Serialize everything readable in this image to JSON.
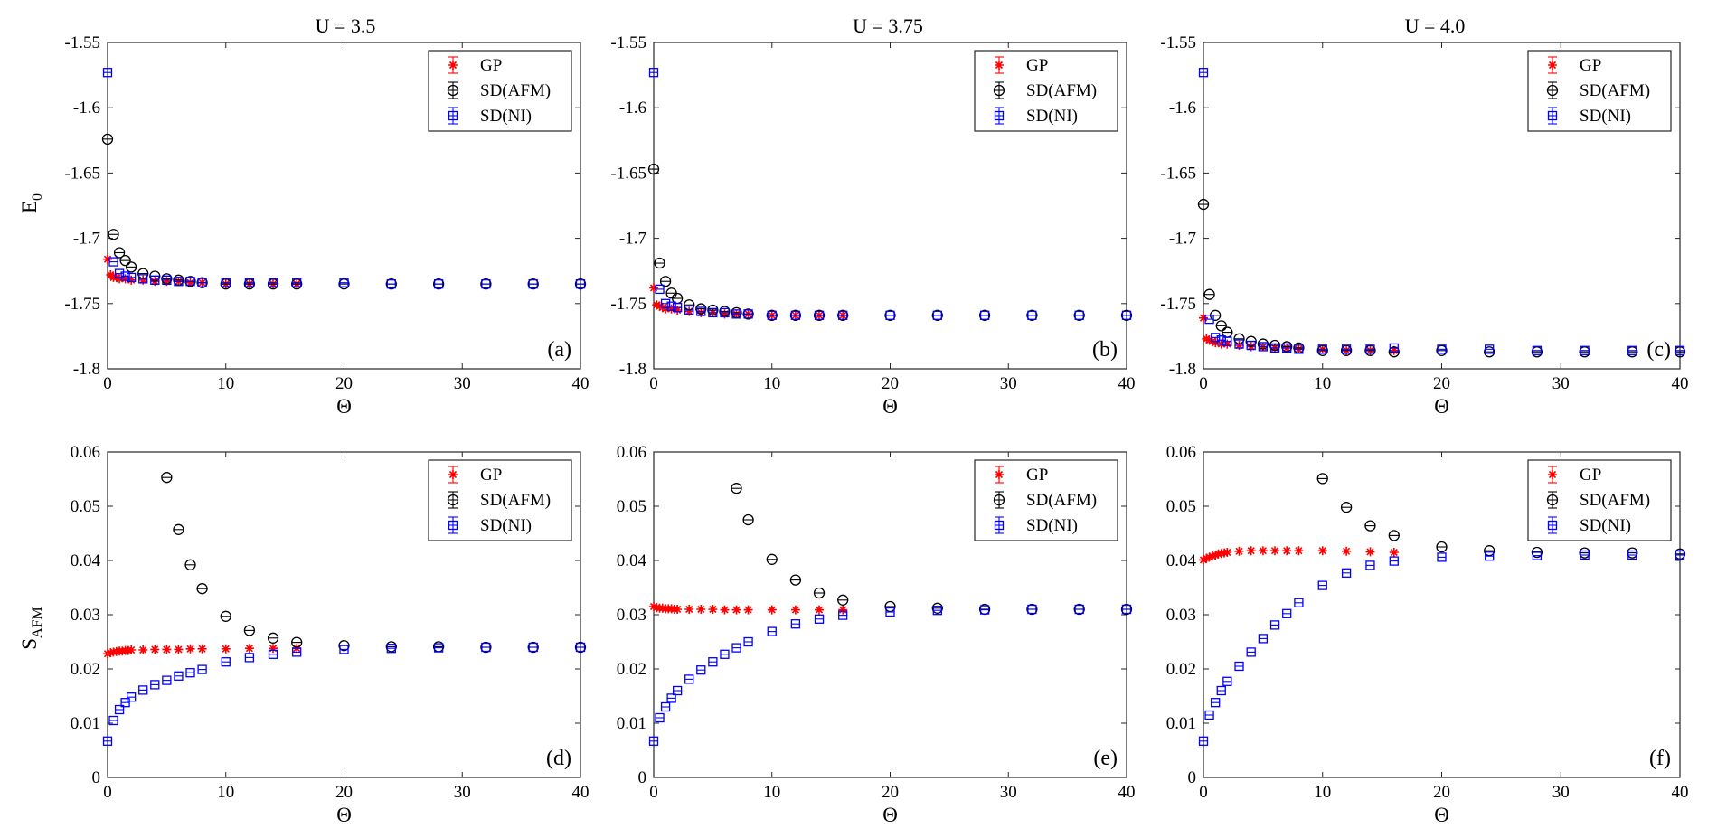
{
  "figure": {
    "column_titles": [
      "U = 3.5",
      "U = 3.75",
      "U = 4.0"
    ],
    "row_ylabels": [
      {
        "main": "E",
        "sub": "0"
      },
      {
        "main": "S",
        "sub": "AFM"
      }
    ],
    "legend_labels": [
      "GP",
      "SD(AFM)",
      "SD(NI)"
    ],
    "colors": {
      "GP": "#ff0000",
      "SD(AFM)": "#000000",
      "SD(NI)": "#0000ff"
    }
  },
  "chart_data": [
    {
      "type": "scatter",
      "panel_label": "(a)",
      "title": "U = 3.5",
      "xlabel": "Θ",
      "ylabel": "E0",
      "xlim": [
        0,
        40
      ],
      "ylim": [
        -1.8,
        -1.55
      ],
      "xticks": [
        0,
        10,
        20,
        30,
        40
      ],
      "xtick_labels": [
        "0",
        "10",
        "20",
        "30",
        "40"
      ],
      "yticks": [
        -1.8,
        -1.75,
        -1.7,
        -1.65,
        -1.6,
        -1.55
      ],
      "ytick_labels": [
        "-1.8",
        "-1.75",
        "-1.7",
        "-1.65",
        "-1.6",
        "-1.55"
      ],
      "legend": [
        "GP",
        "SD(AFM)",
        "SD(NI)"
      ],
      "legend_position": "top-right",
      "series": [
        {
          "name": "GP",
          "marker": "star",
          "x": [
            0,
            0.25,
            0.5,
            0.75,
            1,
            1.5,
            2,
            3,
            4,
            5,
            6,
            7,
            8,
            10,
            12,
            14,
            16
          ],
          "y": [
            -1.716,
            -1.728,
            -1.73,
            -1.73,
            -1.731,
            -1.731,
            -1.732,
            -1.732,
            -1.733,
            -1.733,
            -1.733,
            -1.734,
            -1.734,
            -1.735,
            -1.735,
            -1.735,
            -1.735
          ]
        },
        {
          "name": "SD(AFM)",
          "marker": "circle",
          "x": [
            0,
            0.5,
            1,
            1.5,
            2,
            3,
            4,
            5,
            6,
            7,
            8,
            10,
            12,
            14,
            16,
            20,
            24,
            28,
            32,
            36,
            40
          ],
          "y": [
            -1.624,
            -1.697,
            -1.711,
            -1.717,
            -1.722,
            -1.727,
            -1.729,
            -1.731,
            -1.732,
            -1.733,
            -1.734,
            -1.735,
            -1.735,
            -1.735,
            -1.735,
            -1.735,
            -1.735,
            -1.735,
            -1.735,
            -1.735,
            -1.735
          ]
        },
        {
          "name": "SD(NI)",
          "marker": "square",
          "x": [
            0,
            0.5,
            1,
            1.5,
            2,
            3,
            4,
            5,
            6,
            7,
            8,
            10,
            12,
            14,
            16,
            20,
            24,
            28,
            32,
            36,
            40
          ],
          "y": [
            -1.573,
            -1.718,
            -1.727,
            -1.729,
            -1.73,
            -1.731,
            -1.732,
            -1.732,
            -1.733,
            -1.733,
            -1.734,
            -1.734,
            -1.734,
            -1.734,
            -1.734,
            -1.734,
            -1.735,
            -1.735,
            -1.735,
            -1.735,
            -1.735
          ]
        }
      ]
    },
    {
      "type": "scatter",
      "panel_label": "(b)",
      "title": "U = 3.75",
      "xlabel": "Θ",
      "ylabel": "E0",
      "xlim": [
        0,
        40
      ],
      "ylim": [
        -1.8,
        -1.55
      ],
      "xticks": [
        0,
        10,
        20,
        30,
        40
      ],
      "xtick_labels": [
        "0",
        "10",
        "20",
        "30",
        "40"
      ],
      "yticks": [
        -1.8,
        -1.75,
        -1.7,
        -1.65,
        -1.6,
        -1.55
      ],
      "ytick_labels": [
        "-1.8",
        "-1.75",
        "-1.7",
        "-1.65",
        "-1.6",
        "-1.55"
      ],
      "legend": [
        "GP",
        "SD(AFM)",
        "SD(NI)"
      ],
      "legend_position": "top-right",
      "series": [
        {
          "name": "GP",
          "marker": "star",
          "x": [
            0,
            0.25,
            0.5,
            0.75,
            1,
            1.5,
            2,
            3,
            4,
            5,
            6,
            7,
            8,
            10,
            12,
            14,
            16
          ],
          "y": [
            -1.738,
            -1.751,
            -1.752,
            -1.753,
            -1.754,
            -1.754,
            -1.755,
            -1.756,
            -1.757,
            -1.757,
            -1.758,
            -1.758,
            -1.758,
            -1.759,
            -1.759,
            -1.759,
            -1.759
          ]
        },
        {
          "name": "SD(AFM)",
          "marker": "circle",
          "x": [
            0,
            0.5,
            1,
            1.5,
            2,
            3,
            4,
            5,
            6,
            7,
            8,
            10,
            12,
            14,
            16,
            20,
            24,
            28,
            32,
            36,
            40
          ],
          "y": [
            -1.647,
            -1.719,
            -1.733,
            -1.742,
            -1.746,
            -1.751,
            -1.754,
            -1.755,
            -1.756,
            -1.757,
            -1.758,
            -1.759,
            -1.759,
            -1.759,
            -1.759,
            -1.759,
            -1.759,
            -1.759,
            -1.759,
            -1.759,
            -1.759
          ]
        },
        {
          "name": "SD(NI)",
          "marker": "square",
          "x": [
            0,
            0.5,
            1,
            1.5,
            2,
            3,
            4,
            5,
            6,
            7,
            8,
            10,
            12,
            14,
            16,
            20,
            24,
            28,
            32,
            36,
            40
          ],
          "y": [
            -1.573,
            -1.739,
            -1.75,
            -1.752,
            -1.753,
            -1.755,
            -1.756,
            -1.757,
            -1.757,
            -1.758,
            -1.758,
            -1.759,
            -1.759,
            -1.759,
            -1.759,
            -1.759,
            -1.759,
            -1.759,
            -1.759,
            -1.759,
            -1.759
          ]
        }
      ]
    },
    {
      "type": "scatter",
      "panel_label": "(c)",
      "title": "U = 4.0",
      "xlabel": "Θ",
      "ylabel": "E0",
      "xlim": [
        0,
        40
      ],
      "ylim": [
        -1.8,
        -1.55
      ],
      "xticks": [
        0,
        10,
        20,
        30,
        40
      ],
      "xtick_labels": [
        "0",
        "10",
        "20",
        "30",
        "40"
      ],
      "yticks": [
        -1.8,
        -1.75,
        -1.7,
        -1.65,
        -1.6,
        -1.55
      ],
      "ytick_labels": [
        "-1.8",
        "-1.75",
        "-1.7",
        "-1.65",
        "-1.6",
        "-1.55"
      ],
      "legend": [
        "GP",
        "SD(AFM)",
        "SD(NI)"
      ],
      "legend_position": "top-right",
      "series": [
        {
          "name": "GP",
          "marker": "star",
          "x": [
            0,
            0.25,
            0.5,
            0.75,
            1,
            1.5,
            2,
            3,
            4,
            5,
            6,
            7,
            8,
            10,
            12,
            14,
            16
          ],
          "y": [
            -1.761,
            -1.777,
            -1.778,
            -1.779,
            -1.78,
            -1.781,
            -1.781,
            -1.782,
            -1.783,
            -1.783,
            -1.784,
            -1.784,
            -1.785,
            -1.785,
            -1.786,
            -1.786,
            -1.786
          ]
        },
        {
          "name": "SD(AFM)",
          "marker": "circle",
          "x": [
            0,
            0.5,
            1,
            1.5,
            2,
            3,
            4,
            5,
            6,
            7,
            8,
            10,
            12,
            14,
            16,
            20,
            24,
            28,
            32,
            36,
            40
          ],
          "y": [
            -1.674,
            -1.743,
            -1.759,
            -1.767,
            -1.772,
            -1.777,
            -1.779,
            -1.781,
            -1.782,
            -1.783,
            -1.784,
            -1.786,
            -1.786,
            -1.786,
            -1.787,
            -1.786,
            -1.787,
            -1.787,
            -1.787,
            -1.787,
            -1.787
          ]
        },
        {
          "name": "SD(NI)",
          "marker": "square",
          "x": [
            0,
            0.5,
            1,
            1.5,
            2,
            3,
            4,
            5,
            6,
            7,
            8,
            10,
            12,
            14,
            16,
            20,
            24,
            28,
            32,
            36,
            40
          ],
          "y": [
            -1.573,
            -1.762,
            -1.776,
            -1.778,
            -1.779,
            -1.781,
            -1.782,
            -1.783,
            -1.784,
            -1.784,
            -1.785,
            -1.785,
            -1.785,
            -1.785,
            -1.784,
            -1.785,
            -1.785,
            -1.786,
            -1.786,
            -1.786,
            -1.786
          ]
        }
      ]
    },
    {
      "type": "scatter",
      "panel_label": "(d)",
      "title": "",
      "xlabel": "Θ",
      "ylabel": "SAFM",
      "xlim": [
        0,
        40
      ],
      "ylim": [
        0,
        0.06
      ],
      "xticks": [
        0,
        10,
        20,
        30,
        40
      ],
      "xtick_labels": [
        "0",
        "10",
        "20",
        "30",
        "40"
      ],
      "yticks": [
        0,
        0.01,
        0.02,
        0.03,
        0.04,
        0.05,
        0.06
      ],
      "ytick_labels": [
        "0",
        "0.01",
        "0.02",
        "0.03",
        "0.04",
        "0.05",
        "0.06"
      ],
      "legend": [
        "GP",
        "SD(AFM)",
        "SD(NI)"
      ],
      "legend_position": "top-right",
      "series": [
        {
          "name": "GP",
          "marker": "star",
          "x": [
            0,
            0.25,
            0.5,
            0.75,
            1,
            1.25,
            1.5,
            1.75,
            2,
            3,
            4,
            5,
            6,
            7,
            8,
            10,
            12,
            14,
            16
          ],
          "y": [
            0.0228,
            0.023,
            0.0231,
            0.0232,
            0.0233,
            0.0233,
            0.0234,
            0.0234,
            0.0235,
            0.0235,
            0.0236,
            0.0236,
            0.0236,
            0.0237,
            0.0237,
            0.0237,
            0.0238,
            0.0238,
            0.0238
          ]
        },
        {
          "name": "SD(AFM)",
          "marker": "circle",
          "x": [
            5,
            6,
            7,
            8,
            10,
            12,
            14,
            16,
            20,
            24,
            28,
            32,
            36,
            40
          ],
          "y": [
            0.0553,
            0.0457,
            0.0392,
            0.0348,
            0.0297,
            0.0271,
            0.0257,
            0.0249,
            0.0243,
            0.0241,
            0.0241,
            0.024,
            0.024,
            0.024
          ]
        },
        {
          "name": "SD(NI)",
          "marker": "square",
          "x": [
            0,
            0.5,
            1,
            1.5,
            2,
            3,
            4,
            5,
            6,
            7,
            8,
            10,
            12,
            14,
            16,
            20,
            24,
            28,
            32,
            36,
            40
          ],
          "y": [
            0.0067,
            0.0105,
            0.0125,
            0.0138,
            0.0148,
            0.0161,
            0.0171,
            0.0179,
            0.0187,
            0.0193,
            0.0199,
            0.0213,
            0.0221,
            0.0227,
            0.0231,
            0.0236,
            0.0238,
            0.0239,
            0.024,
            0.024,
            0.024
          ]
        }
      ]
    },
    {
      "type": "scatter",
      "panel_label": "(e)",
      "title": "",
      "xlabel": "Θ",
      "ylabel": "SAFM",
      "xlim": [
        0,
        40
      ],
      "ylim": [
        0,
        0.06
      ],
      "xticks": [
        0,
        10,
        20,
        30,
        40
      ],
      "xtick_labels": [
        "0",
        "10",
        "20",
        "30",
        "40"
      ],
      "yticks": [
        0,
        0.01,
        0.02,
        0.03,
        0.04,
        0.05,
        0.06
      ],
      "ytick_labels": [
        "0",
        "0.01",
        "0.02",
        "0.03",
        "0.04",
        "0.05",
        "0.06"
      ],
      "legend": [
        "GP",
        "SD(AFM)",
        "SD(NI)"
      ],
      "legend_position": "top-right",
      "series": [
        {
          "name": "GP",
          "marker": "star",
          "x": [
            0,
            0.25,
            0.5,
            0.75,
            1,
            1.25,
            1.5,
            1.75,
            2,
            3,
            4,
            5,
            6,
            7,
            8,
            10,
            12,
            14,
            16
          ],
          "y": [
            0.0315,
            0.0313,
            0.0312,
            0.0312,
            0.0311,
            0.0311,
            0.0311,
            0.031,
            0.031,
            0.031,
            0.031,
            0.031,
            0.0309,
            0.0309,
            0.0309,
            0.0309,
            0.0309,
            0.0309,
            0.0309
          ]
        },
        {
          "name": "SD(AFM)",
          "marker": "circle",
          "x": [
            7,
            8,
            10,
            12,
            14,
            16,
            20,
            24,
            28,
            32,
            36,
            40
          ],
          "y": [
            0.0533,
            0.0475,
            0.0402,
            0.0364,
            0.034,
            0.0327,
            0.0315,
            0.0312,
            0.031,
            0.031,
            0.031,
            0.031
          ]
        },
        {
          "name": "SD(NI)",
          "marker": "square",
          "x": [
            0,
            0.5,
            1,
            1.5,
            2,
            3,
            4,
            5,
            6,
            7,
            8,
            10,
            12,
            14,
            16,
            20,
            24,
            28,
            32,
            36,
            40
          ],
          "y": [
            0.0067,
            0.011,
            0.013,
            0.0146,
            0.016,
            0.0181,
            0.0198,
            0.0213,
            0.0227,
            0.0239,
            0.025,
            0.0269,
            0.0283,
            0.0292,
            0.0299,
            0.0305,
            0.0308,
            0.0309,
            0.031,
            0.031,
            0.031
          ]
        }
      ]
    },
    {
      "type": "scatter",
      "panel_label": "(f)",
      "title": "",
      "xlabel": "Θ",
      "ylabel": "SAFM",
      "xlim": [
        0,
        40
      ],
      "ylim": [
        0,
        0.06
      ],
      "xticks": [
        0,
        10,
        20,
        30,
        40
      ],
      "xtick_labels": [
        "0",
        "10",
        "20",
        "30",
        "40"
      ],
      "yticks": [
        0,
        0.01,
        0.02,
        0.03,
        0.04,
        0.05,
        0.06
      ],
      "ytick_labels": [
        "0",
        "0.01",
        "0.02",
        "0.03",
        "0.04",
        "0.05",
        "0.06"
      ],
      "legend": [
        "GP",
        "SD(AFM)",
        "SD(NI)"
      ],
      "legend_position": "top-right",
      "series": [
        {
          "name": "GP",
          "marker": "star",
          "x": [
            0,
            0.25,
            0.5,
            0.75,
            1,
            1.25,
            1.5,
            1.75,
            2,
            3,
            4,
            5,
            6,
            7,
            8,
            10,
            12,
            14,
            16
          ],
          "y": [
            0.0401,
            0.0404,
            0.0406,
            0.0408,
            0.041,
            0.0412,
            0.0413,
            0.0414,
            0.0415,
            0.0417,
            0.0418,
            0.0418,
            0.0418,
            0.0418,
            0.0418,
            0.0418,
            0.0417,
            0.0416,
            0.0415
          ]
        },
        {
          "name": "SD(AFM)",
          "marker": "circle",
          "x": [
            10,
            12,
            14,
            16,
            20,
            24,
            28,
            32,
            36,
            40
          ],
          "y": [
            0.0551,
            0.0498,
            0.0464,
            0.0446,
            0.0425,
            0.0418,
            0.0415,
            0.0414,
            0.0414,
            0.0412
          ]
        },
        {
          "name": "SD(NI)",
          "marker": "square",
          "x": [
            0,
            0.5,
            1,
            1.5,
            2,
            3,
            4,
            5,
            6,
            7,
            8,
            10,
            12,
            14,
            16,
            20,
            24,
            28,
            32,
            36,
            40
          ],
          "y": [
            0.0067,
            0.0115,
            0.0138,
            0.016,
            0.0177,
            0.0205,
            0.0231,
            0.0256,
            0.0281,
            0.0302,
            0.0322,
            0.0354,
            0.0377,
            0.0391,
            0.0399,
            0.0406,
            0.0408,
            0.0409,
            0.041,
            0.041,
            0.041
          ]
        }
      ]
    }
  ]
}
